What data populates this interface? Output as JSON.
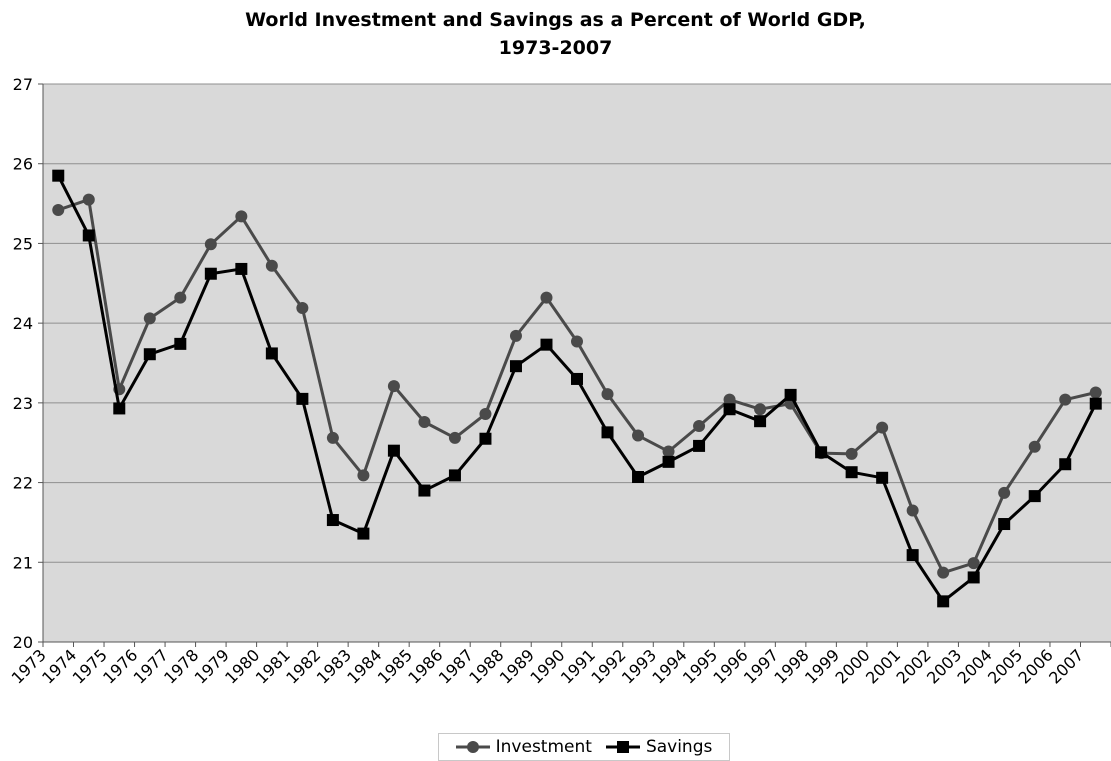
{
  "chart_data": {
    "type": "line",
    "title_line1": "World Investment and Savings as a Percent of World GDP,",
    "title_line2": "1973-2007",
    "xlabel": "",
    "ylabel": "",
    "ylim": [
      20,
      27
    ],
    "yticks": [
      20,
      21,
      22,
      23,
      24,
      25,
      26,
      27
    ],
    "grid": true,
    "legend_position": "bottom",
    "categories": [
      "1973",
      "1974",
      "1975",
      "1976",
      "1977",
      "1978",
      "1979",
      "1980",
      "1981",
      "1982",
      "1983",
      "1984",
      "1985",
      "1986",
      "1987",
      "1988",
      "1989",
      "1990",
      "1991",
      "1992",
      "1993",
      "1994",
      "1995",
      "1996",
      "1997",
      "1998",
      "1999",
      "2000",
      "2001",
      "2002",
      "2003",
      "2004",
      "2005",
      "2006",
      "2007"
    ],
    "series": [
      {
        "name": "Investment",
        "color": "#4a4a4a",
        "marker": "circle",
        "values": [
          25.42,
          25.55,
          23.17,
          24.06,
          24.32,
          24.99,
          25.34,
          24.72,
          24.19,
          22.56,
          22.09,
          23.21,
          22.76,
          22.56,
          22.86,
          23.84,
          24.32,
          23.77,
          23.11,
          22.59,
          22.39,
          22.71,
          23.04,
          22.92,
          22.99,
          22.37,
          22.36,
          22.69,
          21.65,
          20.87,
          20.99,
          21.87,
          22.45,
          23.04,
          23.13
        ]
      },
      {
        "name": "Savings",
        "color": "#000000",
        "marker": "square",
        "values": [
          25.85,
          25.1,
          22.93,
          23.61,
          23.74,
          24.62,
          24.68,
          23.62,
          23.05,
          21.53,
          21.36,
          22.4,
          21.9,
          22.09,
          22.55,
          23.46,
          23.73,
          23.3,
          22.63,
          22.07,
          22.26,
          22.46,
          22.92,
          22.77,
          23.1,
          22.38,
          22.13,
          22.06,
          21.09,
          20.51,
          20.81,
          21.48,
          21.83,
          22.23,
          22.99
        ]
      }
    ]
  }
}
